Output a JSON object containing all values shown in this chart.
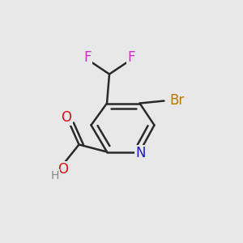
{
  "bg_color": "#e8e8e8",
  "bond_color": "#2a2a2a",
  "bond_width": 1.8,
  "atom_colors": {
    "C": "#2a2a2a",
    "H": "#888888",
    "N": "#1a1acc",
    "O": "#dd1111",
    "F": "#cc33cc",
    "Br": "#bb7700"
  },
  "font_size": 12,
  "small_font_size": 10
}
